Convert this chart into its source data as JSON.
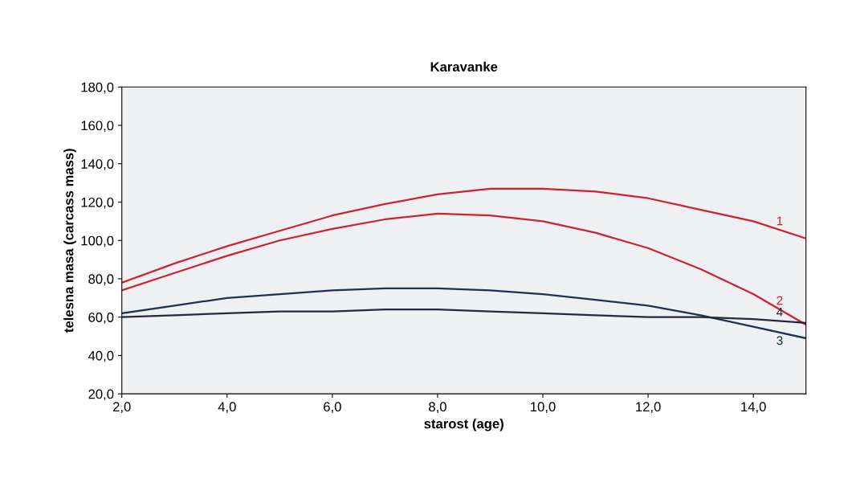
{
  "chart_data": {
    "type": "line",
    "title": "Karavanke",
    "xlabel": "starost (age)",
    "ylabel": "telesna masa (carcass mass)",
    "x": [
      2,
      3,
      4,
      5,
      6,
      7,
      8,
      9,
      10,
      11,
      12,
      13,
      14,
      15
    ],
    "series": [
      {
        "name": "1",
        "color": "#cc2233",
        "values": [
          78,
          88,
          97,
          105,
          113,
          119,
          124,
          127,
          127,
          125.5,
          122,
          116,
          110,
          101
        ]
      },
      {
        "name": "2",
        "color": "#cc2233",
        "values": [
          74,
          83,
          92,
          100,
          106,
          111,
          114,
          113,
          110,
          104,
          96,
          85,
          72,
          56
        ]
      },
      {
        "name": "3",
        "color": "#1f3050",
        "values": [
          62,
          66,
          70,
          72,
          74,
          75,
          75,
          74,
          72,
          69,
          66,
          61,
          55,
          49
        ]
      },
      {
        "name": "4",
        "color": "#22293a",
        "values": [
          60,
          61,
          62,
          63,
          63,
          64,
          64,
          63,
          62,
          61,
          60,
          60,
          59,
          57
        ]
      }
    ],
    "xlim": [
      2,
      15
    ],
    "ylim": [
      20,
      180
    ],
    "xticks": [
      {
        "value": 2,
        "label": "2,0"
      },
      {
        "value": 4,
        "label": "4,0"
      },
      {
        "value": 6,
        "label": "6,0"
      },
      {
        "value": 8,
        "label": "8,0"
      },
      {
        "value": 10,
        "label": "10,0"
      },
      {
        "value": 12,
        "label": "12,0"
      },
      {
        "value": 14,
        "label": "14,0"
      }
    ],
    "yticks": [
      {
        "value": 20,
        "label": "20,0"
      },
      {
        "value": 40,
        "label": "40,0"
      },
      {
        "value": 60,
        "label": "60,0"
      },
      {
        "value": 80,
        "label": "80,0"
      },
      {
        "value": 100,
        "label": "100,0"
      },
      {
        "value": 120,
        "label": "120,0"
      },
      {
        "value": 140,
        "label": "140,0"
      },
      {
        "value": 160,
        "label": "160,0"
      },
      {
        "value": 180,
        "label": "180,0"
      }
    ],
    "grid": false,
    "legend": false,
    "marker": "none",
    "line_style": "solid"
  }
}
